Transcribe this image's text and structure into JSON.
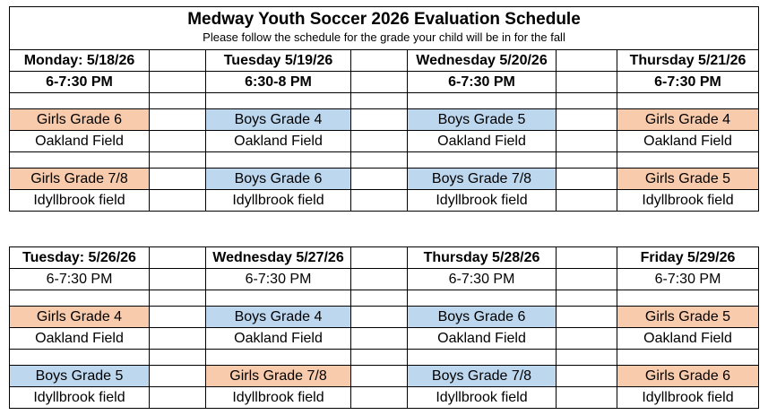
{
  "title": "Medway Youth Soccer 2026 Evaluation Schedule",
  "subtitle": "Please follow the schedule for the grade your child will be in for the fall",
  "week1": {
    "days": [
      {
        "day": "Monday: 5/18/26",
        "time": "6-7:30 PM",
        "slot1": {
          "group": "Girls Grade 6",
          "color": "girls"
        },
        "field1": "Oakland Field",
        "slot2": {
          "group": "Girls Grade 7/8",
          "color": "girls"
        },
        "field2": "Idyllbrook field"
      },
      {
        "day": "Tuesday 5/19/26",
        "time": "6:30-8 PM",
        "slot1": {
          "group": "Boys Grade 4",
          "color": "boys"
        },
        "field1": "Oakland Field",
        "slot2": {
          "group": "Boys Grade 6",
          "color": "boys"
        },
        "field2": "Idyllbrook field"
      },
      {
        "day": "Wednesday 5/20/26",
        "time": "6-7:30 PM",
        "slot1": {
          "group": "Boys Grade 5",
          "color": "boys"
        },
        "field1": "Oakland Field",
        "slot2": {
          "group": "Boys Grade 7/8",
          "color": "boys"
        },
        "field2": "Idyllbrook field"
      },
      {
        "day": "Thursday 5/21/26",
        "time": "6-7:30 PM",
        "slot1": {
          "group": "Girls Grade 4",
          "color": "girls"
        },
        "field1": "Oakland Field",
        "slot2": {
          "group": "Girls Grade 5",
          "color": "girls"
        },
        "field2": "Idyllbrook field"
      }
    ]
  },
  "week2": {
    "days": [
      {
        "day": "Tuesday: 5/26/26",
        "time": "6-7:30 PM",
        "slot1": {
          "group": "Girls Grade 4",
          "color": "girls"
        },
        "field1": "Oakland Field",
        "slot2": {
          "group": "Boys Grade 5",
          "color": "boys"
        },
        "field2": "Idyllbrook field"
      },
      {
        "day": "Wednesday 5/27/26",
        "time": "6-7:30 PM",
        "slot1": {
          "group": "Boys Grade 4",
          "color": "boys"
        },
        "field1": "Oakland Field",
        "slot2": {
          "group": "Girls Grade 7/8",
          "color": "girls"
        },
        "field2": "Idyllbrook field"
      },
      {
        "day": "Thursday 5/28/26",
        "time": "6-7:30 PM",
        "slot1": {
          "group": "Boys Grade 6",
          "color": "boys"
        },
        "field1": "Oakland Field",
        "slot2": {
          "group": "Boys Grade 7/8",
          "color": "boys"
        },
        "field2": "Idyllbrook field"
      },
      {
        "day": "Friday 5/29/26",
        "time": "6-7:30 PM",
        "slot1": {
          "group": "Girls Grade 5",
          "color": "girls"
        },
        "field1": "Oakland Field",
        "slot2": {
          "group": "Girls Grade 6",
          "color": "girls"
        },
        "field2": "Idyllbrook field"
      }
    ]
  },
  "colors": {
    "boys": "#bdd7ee",
    "girls": "#f8cbad",
    "border": "#000000"
  }
}
